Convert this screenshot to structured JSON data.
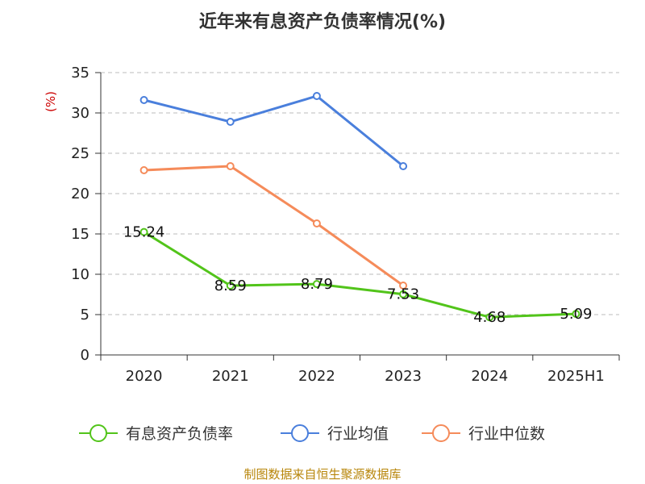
{
  "chart_data": {
    "type": "line",
    "title": "近年来有息资产负债率情况(%)",
    "ylabel": "(%)",
    "xlabel": "",
    "categories": [
      "2020",
      "2021",
      "2022",
      "2023",
      "2024",
      "2025H1"
    ],
    "ylim": [
      0,
      35
    ],
    "yticks": [
      0,
      5,
      10,
      15,
      20,
      25,
      30,
      35
    ],
    "grid": true,
    "legend_position": "bottom",
    "series": [
      {
        "name": "有息资产负债率",
        "color": "#52c41a",
        "values": [
          15.24,
          8.59,
          8.79,
          7.53,
          4.68,
          5.09
        ],
        "labels": [
          "15.24",
          "8.59",
          "8.79",
          "7.53",
          "4.68",
          "5.09"
        ]
      },
      {
        "name": "行业均值",
        "color": "#4a7fdc",
        "values": [
          31.6,
          28.9,
          32.1,
          23.4,
          null,
          null
        ]
      },
      {
        "name": "行业中位数",
        "color": "#f58b5a",
        "values": [
          22.9,
          23.4,
          16.3,
          8.6,
          null,
          null
        ]
      }
    ]
  },
  "footer": "制图数据来自恒生聚源数据库"
}
